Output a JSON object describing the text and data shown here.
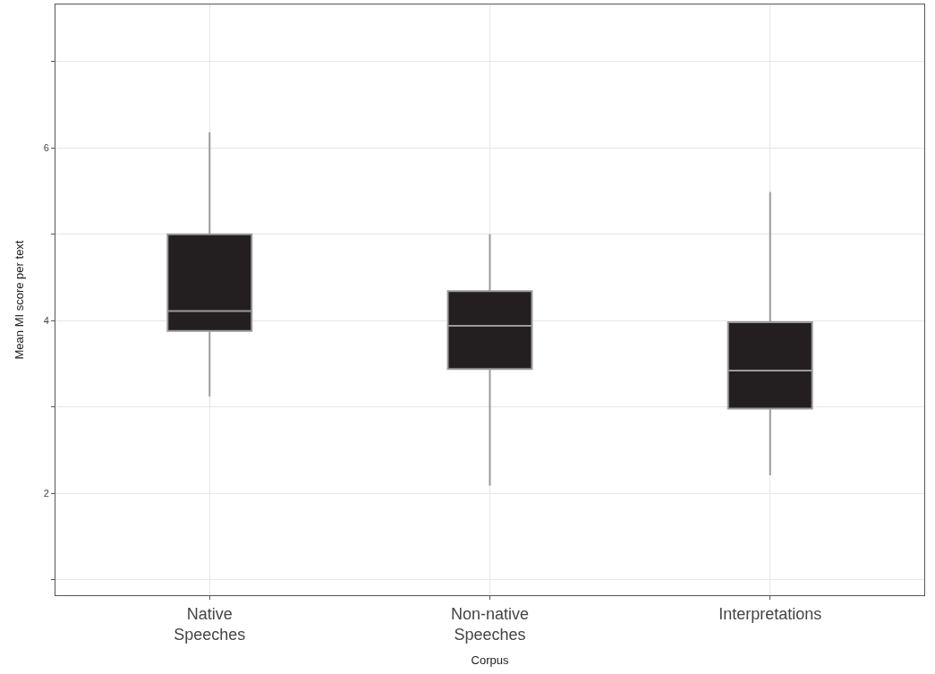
{
  "chart_data": {
    "type": "box",
    "xlabel": "Corpus",
    "ylabel": "Mean MI score per text",
    "categories": [
      "Native Speeches",
      "Non-native Speeches",
      "Interpretations"
    ],
    "series": [
      {
        "color": "#231f20",
        "boxes": [
          {
            "low": 3.12,
            "q1": 3.88,
            "median": 4.11,
            "q3": 5.0,
            "high": 6.18
          },
          {
            "low": 2.09,
            "q1": 3.44,
            "median": 3.94,
            "q3": 4.34,
            "high": 5.0
          },
          {
            "low": 2.21,
            "q1": 2.98,
            "median": 3.42,
            "q3": 3.98,
            "high": 5.49
          }
        ]
      }
    ],
    "ylim": [
      0.82,
      7.66
    ],
    "yticks": [
      {
        "value": 1,
        "label": null
      },
      2,
      {
        "value": 3,
        "label": null
      },
      4,
      {
        "value": 5,
        "label": null
      },
      6,
      {
        "value": 7,
        "label": null
      }
    ],
    "grid": true
  }
}
